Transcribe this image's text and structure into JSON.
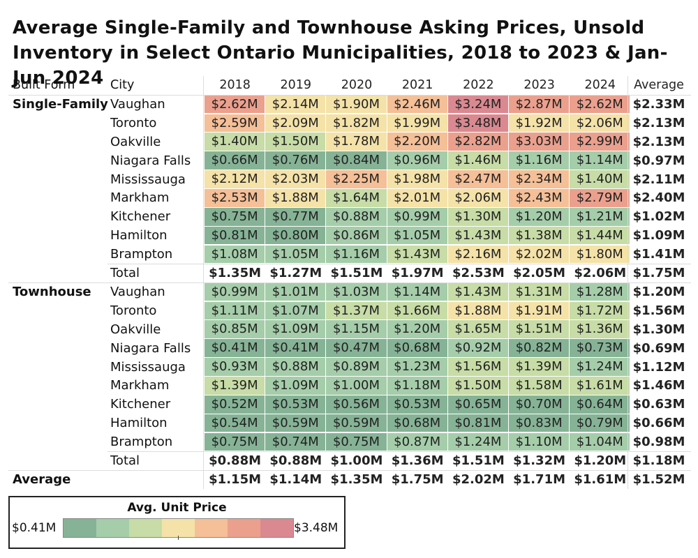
{
  "title": "Average Single-Family and Townhouse Asking Prices, Unsold Inventory in Select Ontario Municipalities, 2018 to 2023 & Jan-Jun 2024",
  "headers": {
    "built_form": "Built Form",
    "city": "City",
    "years": [
      "2018",
      "2019",
      "2020",
      "2021",
      "2022",
      "2023",
      "2024"
    ],
    "average": "Average"
  },
  "legend": {
    "title": "Avg. Unit Price",
    "min_label": "$0.41M",
    "max_label": "$3.48M",
    "colors": [
      "#86b396",
      "#a5cdaa",
      "#c7dca6",
      "#f4e2a8",
      "#f5bf97",
      "#eba08e",
      "#da8991"
    ]
  },
  "chart_data": {
    "type": "heatmap",
    "title": "Average Single-Family and Townhouse Asking Prices, Unsold Inventory in Select Ontario Municipalities, 2018 to 2023 & Jan-Jun 2024",
    "unit": "$M",
    "color_scale": {
      "min": 0.41,
      "max": 3.48,
      "label": "Avg. Unit Price"
    },
    "columns": [
      "2018",
      "2019",
      "2020",
      "2021",
      "2022",
      "2023",
      "2024"
    ],
    "groups": [
      {
        "name": "Single-Family",
        "rows": [
          {
            "city": "Vaughan",
            "values": [
              "$2.62M",
              "$2.14M",
              "$1.90M",
              "$2.46M",
              "$3.24M",
              "$2.87M",
              "$2.62M"
            ],
            "average": "$2.33M"
          },
          {
            "city": "Toronto",
            "values": [
              "$2.59M",
              "$2.09M",
              "$1.82M",
              "$1.99M",
              "$3.48M",
              "$1.92M",
              "$2.06M"
            ],
            "average": "$2.13M"
          },
          {
            "city": "Oakville",
            "values": [
              "$1.40M",
              "$1.50M",
              "$1.78M",
              "$2.20M",
              "$2.82M",
              "$3.03M",
              "$2.99M"
            ],
            "average": "$2.13M"
          },
          {
            "city": "Niagara Falls",
            "values": [
              "$0.66M",
              "$0.76M",
              "$0.84M",
              "$0.96M",
              "$1.46M",
              "$1.16M",
              "$1.14M"
            ],
            "average": "$0.97M"
          },
          {
            "city": "Mississauga",
            "values": [
              "$2.12M",
              "$2.03M",
              "$2.25M",
              "$1.98M",
              "$2.47M",
              "$2.34M",
              "$1.40M"
            ],
            "average": "$2.11M"
          },
          {
            "city": "Markham",
            "values": [
              "$2.53M",
              "$1.88M",
              "$1.64M",
              "$2.01M",
              "$2.06M",
              "$2.43M",
              "$2.79M"
            ],
            "average": "$2.40M"
          },
          {
            "city": "Kitchener",
            "values": [
              "$0.75M",
              "$0.77M",
              "$0.88M",
              "$0.99M",
              "$1.30M",
              "$1.20M",
              "$1.21M"
            ],
            "average": "$1.02M"
          },
          {
            "city": "Hamilton",
            "values": [
              "$0.81M",
              "$0.80M",
              "$0.86M",
              "$1.05M",
              "$1.43M",
              "$1.38M",
              "$1.44M"
            ],
            "average": "$1.09M"
          },
          {
            "city": "Brampton",
            "values": [
              "$1.08M",
              "$1.05M",
              "$1.16M",
              "$1.43M",
              "$2.16M",
              "$2.02M",
              "$1.80M"
            ],
            "average": "$1.41M"
          }
        ],
        "total": {
          "label": "Total",
          "values": [
            "$1.35M",
            "$1.27M",
            "$1.51M",
            "$1.97M",
            "$2.53M",
            "$2.05M",
            "$2.06M"
          ],
          "average": "$1.75M"
        }
      },
      {
        "name": "Townhouse",
        "rows": [
          {
            "city": "Vaughan",
            "values": [
              "$0.99M",
              "$1.01M",
              "$1.03M",
              "$1.14M",
              "$1.43M",
              "$1.31M",
              "$1.28M"
            ],
            "average": "$1.20M"
          },
          {
            "city": "Toronto",
            "values": [
              "$1.11M",
              "$1.07M",
              "$1.37M",
              "$1.66M",
              "$1.88M",
              "$1.91M",
              "$1.72M"
            ],
            "average": "$1.56M"
          },
          {
            "city": "Oakville",
            "values": [
              "$0.85M",
              "$1.09M",
              "$1.15M",
              "$1.20M",
              "$1.65M",
              "$1.51M",
              "$1.36M"
            ],
            "average": "$1.30M"
          },
          {
            "city": "Niagara Falls",
            "values": [
              "$0.41M",
              "$0.41M",
              "$0.47M",
              "$0.68M",
              "$0.92M",
              "$0.82M",
              "$0.73M"
            ],
            "average": "$0.69M"
          },
          {
            "city": "Mississauga",
            "values": [
              "$0.93M",
              "$0.88M",
              "$0.89M",
              "$1.23M",
              "$1.56M",
              "$1.39M",
              "$1.24M"
            ],
            "average": "$1.12M"
          },
          {
            "city": "Markham",
            "values": [
              "$1.39M",
              "$1.09M",
              "$1.00M",
              "$1.18M",
              "$1.50M",
              "$1.58M",
              "$1.61M"
            ],
            "average": "$1.46M"
          },
          {
            "city": "Kitchener",
            "values": [
              "$0.52M",
              "$0.53M",
              "$0.56M",
              "$0.53M",
              "$0.65M",
              "$0.70M",
              "$0.64M"
            ],
            "average": "$0.63M"
          },
          {
            "city": "Hamilton",
            "values": [
              "$0.54M",
              "$0.59M",
              "$0.59M",
              "$0.68M",
              "$0.81M",
              "$0.83M",
              "$0.79M"
            ],
            "average": "$0.66M"
          },
          {
            "city": "Brampton",
            "values": [
              "$0.75M",
              "$0.74M",
              "$0.75M",
              "$0.87M",
              "$1.24M",
              "$1.10M",
              "$1.04M"
            ],
            "average": "$0.98M"
          }
        ],
        "total": {
          "label": "Total",
          "values": [
            "$0.88M",
            "$0.88M",
            "$1.00M",
            "$1.36M",
            "$1.51M",
            "$1.32M",
            "$1.20M"
          ],
          "average": "$1.18M"
        }
      }
    ],
    "grand_total": {
      "label": "Average",
      "values": [
        "$1.15M",
        "$1.14M",
        "$1.35M",
        "$1.75M",
        "$2.02M",
        "$1.71M",
        "$1.61M"
      ],
      "average": "$1.52M"
    }
  }
}
